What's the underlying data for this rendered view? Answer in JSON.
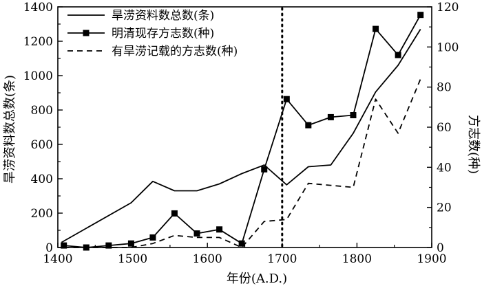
{
  "chart_data": {
    "type": "line",
    "xlabel": "年份(A.D.)",
    "ylabel_left": "旱涝资料数总数(条)",
    "ylabel_right": "方志数(种)",
    "xlim": [
      1400,
      1900
    ],
    "ylim_left": [
      0,
      1400
    ],
    "ylim_right": [
      0,
      120
    ],
    "x_ticks": [
      1400,
      1500,
      1600,
      1700,
      1800,
      1900
    ],
    "y_left_ticks": [
      0,
      200,
      400,
      600,
      800,
      1000,
      1200,
      1400
    ],
    "y_right_ticks": [
      0,
      20,
      40,
      60,
      80,
      100,
      120
    ],
    "reference_line_x": 1700,
    "legend_position": "top-left",
    "grid": false,
    "series": [
      {
        "name": "旱涝资料数总数(条)",
        "axis": "left",
        "style": "solid",
        "x": [
          1405,
          1498,
          1527,
          1556,
          1586,
          1616,
          1646,
          1676,
          1706,
          1735,
          1765,
          1795,
          1825,
          1855,
          1885
        ],
        "y": [
          30,
          260,
          385,
          330,
          330,
          370,
          430,
          480,
          365,
          470,
          480,
          665,
          905,
          1060,
          1270
        ]
      },
      {
        "name": "明清现存方志数(种)",
        "axis": "right",
        "style": "solid-square",
        "x": [
          1408,
          1438,
          1468,
          1498,
          1527,
          1556,
          1586,
          1616,
          1646,
          1676,
          1706,
          1735,
          1765,
          1795,
          1825,
          1855,
          1885
        ],
        "y": [
          1,
          0,
          1,
          2,
          5,
          17,
          7,
          9,
          2,
          39,
          74,
          61,
          65,
          66,
          109,
          96,
          116
        ]
      },
      {
        "name": "有旱涝记载的方志数(种)",
        "axis": "right",
        "style": "dashed",
        "x": [
          1408,
          1438,
          1468,
          1498,
          1527,
          1556,
          1586,
          1616,
          1646,
          1676,
          1706,
          1735,
          1765,
          1795,
          1825,
          1855,
          1885
        ],
        "y": [
          0,
          0,
          0,
          0,
          2,
          6,
          5,
          5,
          0,
          13,
          14,
          32,
          31,
          30,
          74,
          57,
          84
        ]
      }
    ]
  }
}
